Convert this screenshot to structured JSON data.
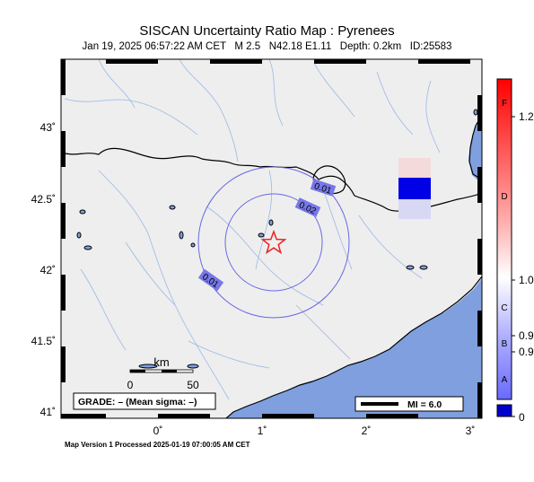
{
  "header": {
    "title": "SISCAN Uncertainty Ratio Map : Pyrenees",
    "subtitle": "Jan 19, 2025 06:57:22 AM CET   M 2.5   N42.18 E1.11   Depth: 0.2km   ID:25583"
  },
  "map": {
    "lat_ticks": [
      "43˚",
      "42.5˚",
      "42˚",
      "41.5˚",
      "41˚"
    ],
    "lon_ticks": [
      "0˚",
      "1˚",
      "2˚",
      "3˚"
    ],
    "contour_labels": [
      "0.01",
      "0.02",
      "0.01"
    ],
    "epicenter_icon": "star-icon",
    "scalebar": {
      "unit": "km",
      "tick_start": "0",
      "tick_end": "50"
    },
    "grade_box": "GRADE: – (Mean sigma: –)",
    "mi_legend": "MI = 6.0",
    "colors": {
      "land": "#eeeeee",
      "sea": "#7f9fde",
      "contour": "#6868e8",
      "star": "#ee2222"
    }
  },
  "colorbar": {
    "left_labels": [
      "F",
      "D",
      "C",
      "B",
      "A"
    ],
    "right_labels": [
      "1.2",
      "1.0",
      "0.9",
      "0.9",
      "0"
    ],
    "colors": {
      "top": "#ff0000",
      "mid": "#ffffff",
      "bottom": "#0000ff"
    }
  },
  "footer": {
    "text": "Map Version 1 Processed 2025-01-19 07:00:05 AM CET"
  }
}
